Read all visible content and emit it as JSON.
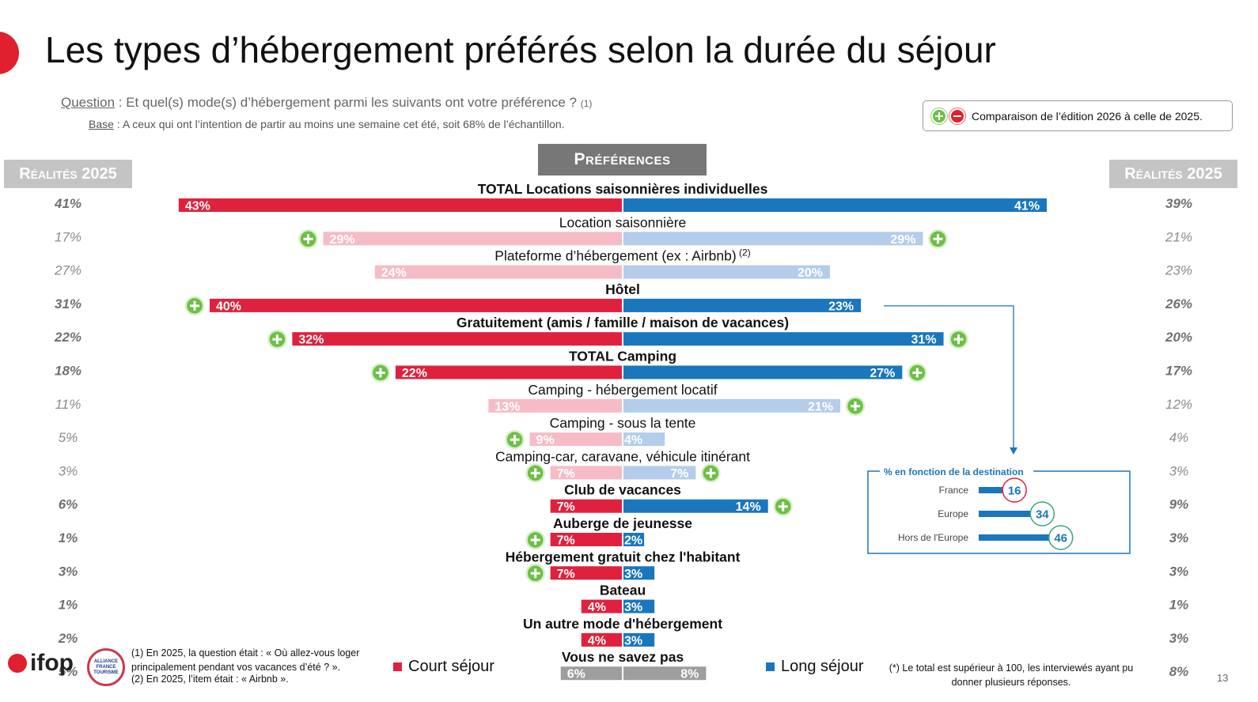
{
  "page": {
    "title": "Les types d’hébergement préférés selon la durée du séjour",
    "question_label": "Question",
    "question_text": " : Et quel(s) mode(s) d’hébergement parmi les suivants ont votre préférence ?",
    "question_ref": "(1)",
    "base_label": "Base",
    "base_text": " : A ceux qui ont l’intention de partir au moins une semaine cet été, soit 68% de l’échantillon.",
    "comparison_text": "Comparaison de l’édition 2026 à celle de 2025.",
    "preferences_header": "Préférences",
    "realites_left": "Réalités 2025",
    "realites_right": "Réalités 2025",
    "logo_text": "ifop",
    "alliance_text": "ALLIANCE FRANCE TOURISME",
    "footnote1": "(1) En 2025, la question était : « Où allez-vous loger principalement pendant vos vacances d’été ? ».",
    "footnote2": "(2) En 2025, l’item était : « Airbnb ».",
    "legend_short": "Court séjour",
    "legend_long": "Long séjour",
    "total_note": "(*) Le total est supérieur à 100, les interviewés ayant pu donner plusieurs réponses.",
    "page_number": "13"
  },
  "colors": {
    "short_dark": "#e0213d",
    "short_light": "#f6bcc6",
    "long_dark": "#1a76bd",
    "long_light": "#b3cdeb",
    "neutral": "#9e9e9e",
    "plus": "#6dbf45",
    "minus": "#e0202f",
    "realites_left_bold": "#707070",
    "realites_light": "#8c8c8c",
    "inset_border": "#1a76bd",
    "inset_circle_france": "#e0213d",
    "inset_circle_other": "#3aa57a"
  },
  "chart_data": {
    "type": "bar",
    "orientation": "diverging-horizontal",
    "unit": "%",
    "series": [
      {
        "name": "Court séjour"
      },
      {
        "name": "Long séjour"
      }
    ],
    "rows": [
      {
        "label": "TOTAL Locations saisonnières individuelles",
        "bold": true,
        "short": 43,
        "long": 41,
        "real_left": "41%",
        "real_right": "39%",
        "tone": "dark",
        "plus_short": false,
        "plus_long": false
      },
      {
        "label": "Location saisonnière",
        "bold": false,
        "short": 29,
        "long": 29,
        "real_left": "17%",
        "real_right": "21%",
        "tone": "light",
        "plus_short": true,
        "plus_long": true
      },
      {
        "label": "Plateforme d’hébergement (ex : Airbnb)",
        "sup": "(2)",
        "bold": false,
        "short": 24,
        "long": 20,
        "real_left": "27%",
        "real_right": "23%",
        "tone": "light",
        "plus_short": false,
        "plus_long": false
      },
      {
        "label": "Hôtel",
        "bold": true,
        "short": 40,
        "long": 23,
        "real_left": "31%",
        "real_right": "26%",
        "tone": "dark",
        "plus_short": true,
        "plus_long": false
      },
      {
        "label": "Gratuitement (amis / famille / maison de vacances)",
        "bold": true,
        "short": 32,
        "long": 31,
        "real_left": "22%",
        "real_right": "20%",
        "tone": "dark",
        "plus_short": true,
        "plus_long": true
      },
      {
        "label": "TOTAL Camping",
        "bold": true,
        "short": 22,
        "long": 27,
        "real_left": "18%",
        "real_right": "17%",
        "tone": "dark",
        "plus_short": true,
        "plus_long": true
      },
      {
        "label": "Camping - hébergement locatif",
        "bold": false,
        "short": 13,
        "long": 21,
        "real_left": "11%",
        "real_right": "12%",
        "tone": "light",
        "plus_short": false,
        "plus_long": true
      },
      {
        "label": "Camping - sous la tente",
        "bold": false,
        "short": 9,
        "long": 4,
        "real_left": "5%",
        "real_right": "4%",
        "tone": "light",
        "plus_short": true,
        "plus_long": false
      },
      {
        "label": "Camping-car, caravane, véhicule itinérant",
        "bold": false,
        "short": 7,
        "long": 7,
        "real_left": "3%",
        "real_right": "3%",
        "tone": "light",
        "plus_short": true,
        "plus_long": true
      },
      {
        "label": "Club de vacances",
        "bold": true,
        "short": 7,
        "long": 14,
        "real_left": "6%",
        "real_right": "9%",
        "tone": "dark",
        "plus_short": false,
        "plus_long": true
      },
      {
        "label": "Auberge de jeunesse",
        "bold": true,
        "short": 7,
        "long": 2,
        "real_left": "1%",
        "real_right": "3%",
        "tone": "dark",
        "plus_short": true,
        "plus_long": false
      },
      {
        "label": "Hébergement gratuit chez l'habitant",
        "bold": true,
        "short": 7,
        "long": 3,
        "real_left": "3%",
        "real_right": "3%",
        "tone": "dark",
        "plus_short": true,
        "plus_long": false
      },
      {
        "label": "Bateau",
        "bold": true,
        "short": 4,
        "long": 3,
        "real_left": "1%",
        "real_right": "1%",
        "tone": "dark",
        "plus_short": false,
        "plus_long": false
      },
      {
        "label": "Un autre mode d'hébergement",
        "bold": true,
        "short": 4,
        "long": 3,
        "real_left": "2%",
        "real_right": "3%",
        "tone": "dark",
        "plus_short": false,
        "plus_long": false
      },
      {
        "label": "Vous ne savez pas",
        "bold": true,
        "short": 6,
        "long": 8,
        "real_left": "5%",
        "real_right": "8%",
        "tone": "neutral",
        "plus_short": false,
        "plus_long": false
      }
    ],
    "inset": {
      "title": "% en fonction de la destination",
      "linked_row": "Hôtel",
      "series": "Long séjour",
      "items": [
        {
          "label": "France",
          "value": 16
        },
        {
          "label": "Europe",
          "value": 34
        },
        {
          "label": "Hors de l'Europe",
          "value": 46
        }
      ]
    }
  }
}
